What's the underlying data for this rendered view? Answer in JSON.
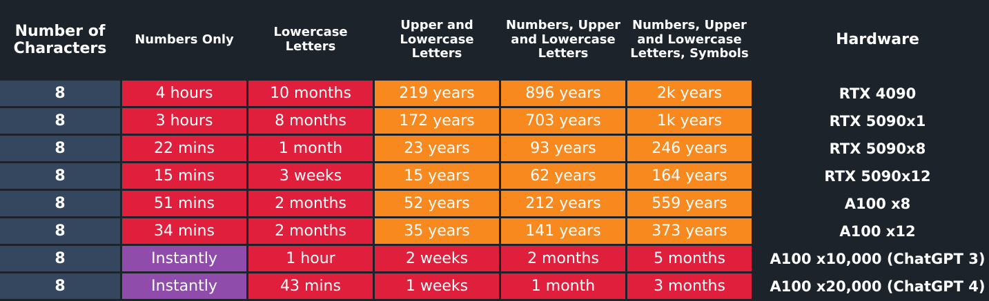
{
  "chart_data": {
    "type": "table",
    "colors": {
      "background": "#1d232b",
      "characters_cell": "#34475f",
      "red": "#df1f3b",
      "orange": "#f7891f",
      "purple": "#8f4cab"
    },
    "headers": [
      "Number of\nCharacters",
      "Numbers Only",
      "Lowercase\nLetters",
      "Upper and\nLowercase\nLetters",
      "Numbers, Upper\nand Lowercase\nLetters",
      "Numbers, Upper\nand Lowercase\nLetters, Symbols",
      "Hardware"
    ],
    "rows": [
      {
        "characters": "8",
        "cells": [
          {
            "text": "4 hours",
            "color": "red"
          },
          {
            "text": "10 months",
            "color": "red"
          },
          {
            "text": "219 years",
            "color": "orange"
          },
          {
            "text": "896 years",
            "color": "orange"
          },
          {
            "text": "2k years",
            "color": "orange"
          }
        ],
        "hardware": "RTX 4090"
      },
      {
        "characters": "8",
        "cells": [
          {
            "text": "3 hours",
            "color": "red"
          },
          {
            "text": "8 months",
            "color": "red"
          },
          {
            "text": "172 years",
            "color": "orange"
          },
          {
            "text": "703 years",
            "color": "orange"
          },
          {
            "text": "1k years",
            "color": "orange"
          }
        ],
        "hardware": "RTX 5090x1"
      },
      {
        "characters": "8",
        "cells": [
          {
            "text": "22 mins",
            "color": "red"
          },
          {
            "text": "1 month",
            "color": "red"
          },
          {
            "text": "23 years",
            "color": "orange"
          },
          {
            "text": "93 years",
            "color": "orange"
          },
          {
            "text": "246 years",
            "color": "orange"
          }
        ],
        "hardware": "RTX 5090x8"
      },
      {
        "characters": "8",
        "cells": [
          {
            "text": "15 mins",
            "color": "red"
          },
          {
            "text": "3 weeks",
            "color": "red"
          },
          {
            "text": "15 years",
            "color": "orange"
          },
          {
            "text": "62 years",
            "color": "orange"
          },
          {
            "text": "164 years",
            "color": "orange"
          }
        ],
        "hardware": "RTX 5090x12"
      },
      {
        "characters": "8",
        "cells": [
          {
            "text": "51 mins",
            "color": "red"
          },
          {
            "text": "2 months",
            "color": "red"
          },
          {
            "text": "52 years",
            "color": "orange"
          },
          {
            "text": "212 years",
            "color": "orange"
          },
          {
            "text": "559 years",
            "color": "orange"
          }
        ],
        "hardware": "A100 x8"
      },
      {
        "characters": "8",
        "cells": [
          {
            "text": "34 mins",
            "color": "red"
          },
          {
            "text": "2 months",
            "color": "red"
          },
          {
            "text": "35 years",
            "color": "orange"
          },
          {
            "text": "141 years",
            "color": "orange"
          },
          {
            "text": "373 years",
            "color": "orange"
          }
        ],
        "hardware": "A100 x12"
      },
      {
        "characters": "8",
        "cells": [
          {
            "text": "Instantly",
            "color": "purple"
          },
          {
            "text": "1 hour",
            "color": "red"
          },
          {
            "text": "2 weeks",
            "color": "red"
          },
          {
            "text": "2 months",
            "color": "red"
          },
          {
            "text": "5 months",
            "color": "red"
          }
        ],
        "hardware": "A100 x10,000 (ChatGPT 3)"
      },
      {
        "characters": "8",
        "cells": [
          {
            "text": "Instantly",
            "color": "purple"
          },
          {
            "text": "43 mins",
            "color": "red"
          },
          {
            "text": "1 weeks",
            "color": "red"
          },
          {
            "text": "1 month",
            "color": "red"
          },
          {
            "text": "3 months",
            "color": "red"
          }
        ],
        "hardware": "A100 x20,000 (ChatGPT 4)"
      }
    ]
  }
}
